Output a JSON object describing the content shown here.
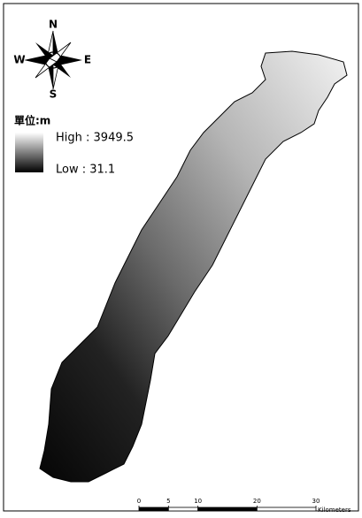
{
  "compass": {
    "n": "N",
    "s": "S",
    "e": "E",
    "w": "W"
  },
  "legend": {
    "unit": "單位:m",
    "high": "High : 3949.5",
    "low": "Low : 31.1"
  },
  "scale_bar": {
    "ticks": [
      0,
      5,
      10,
      20,
      30
    ],
    "unit": "Kilometers"
  }
}
